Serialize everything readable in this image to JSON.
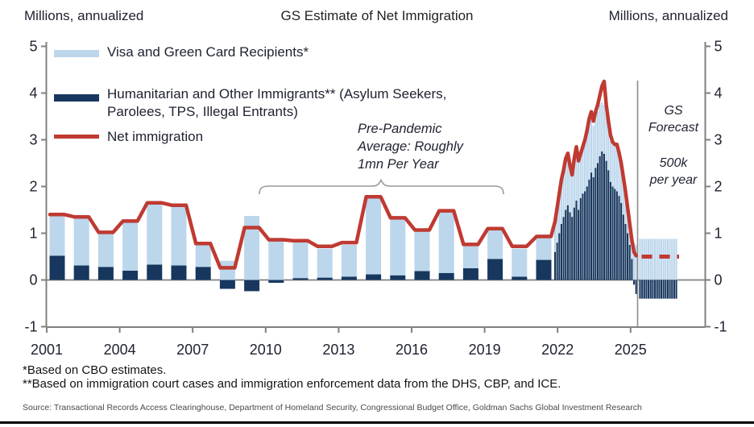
{
  "header": {
    "left_units": "Millions, annualized",
    "title": "GS Estimate of Net Immigration",
    "right_units": "Millions, annualized"
  },
  "legend": [
    {
      "label": "Visa and Green Card Recipients*",
      "swatch": "box",
      "color": "#bcd6ec"
    },
    {
      "label": "Humanitarian and Other Immigrants** (Asylum Seekers,\nParolees, TPS, Illegal Entrants)",
      "swatch": "box",
      "color": "#17375e"
    },
    {
      "label": "Net immigration",
      "swatch": "line",
      "color": "#bf3a32"
    }
  ],
  "annotations": {
    "pre_pandemic": "Pre-Pandemic\nAverage: Roughly\n1mn Per Year",
    "forecast_title": "GS\nForecast",
    "forecast_value": "500k\nper year"
  },
  "footnotes": [
    "*Based on CBO estimates.",
    "**Based on immigration court cases and immigration enforcement data from the DHS, CBP, and ICE."
  ],
  "source": "Source: Transactional Records Access Clearinghouse, Department of Homeland Security, Congressional Budget Office, Goldman Sachs Global Investment Research",
  "chart_data": {
    "type": "bar",
    "subtype": "stacked-bars-with-line",
    "title": "GS Estimate of Net Immigration",
    "ylabel_left": "Millions, annualized",
    "ylabel_right": "Millions, annualized",
    "ylim": [
      -1,
      5
    ],
    "y_ticks": [
      5,
      4,
      3,
      2,
      1,
      0,
      -1
    ],
    "x_ticks": [
      2001,
      2004,
      2007,
      2010,
      2013,
      2016,
      2019,
      2022,
      2025
    ],
    "grid": "zero-line-only",
    "legend_position": "top-left",
    "colors": {
      "visa": "#bcd6ec",
      "humanitarian": "#17375e",
      "net_line": "#bf3a32",
      "axis": "#808080"
    },
    "series_names": [
      "Visa and Green Card Recipients*",
      "Humanitarian and Other Immigrants** (Asylum Seekers, Parolees, TPS, Illegal Entrants)",
      "Net immigration"
    ],
    "annual": {
      "years": [
        2001,
        2002,
        2003,
        2004,
        2005,
        2006,
        2007,
        2008,
        2009,
        2010,
        2011,
        2012,
        2013,
        2014,
        2015,
        2016,
        2017,
        2018,
        2019,
        2020,
        2021
      ],
      "visa_green_card": [
        0.88,
        1.04,
        0.74,
        1.03,
        1.32,
        1.29,
        0.49,
        0.41,
        1.37,
        0.9,
        0.81,
        0.62,
        0.68,
        1.65,
        1.24,
        0.86,
        1.32,
        0.47,
        0.64,
        0.6,
        0.54
      ],
      "humanitarian_other": [
        0.52,
        0.31,
        0.28,
        0.2,
        0.33,
        0.31,
        0.28,
        -0.19,
        -0.24,
        -0.06,
        0.04,
        0.05,
        0.07,
        0.12,
        0.1,
        0.19,
        0.15,
        0.25,
        0.45,
        0.07,
        0.43
      ],
      "net_immigration": [
        1.4,
        1.35,
        1.02,
        1.26,
        1.65,
        1.6,
        0.78,
        0.26,
        1.12,
        0.86,
        0.84,
        0.72,
        0.8,
        1.78,
        1.33,
        1.07,
        1.48,
        0.76,
        1.1,
        0.72,
        0.93
      ]
    },
    "monthly": {
      "start": "2022-01",
      "count": 39,
      "visa_green_card": [
        0.6,
        0.7,
        0.8,
        0.9,
        0.95,
        1.05,
        1.1,
        1.0,
        0.95,
        1.05,
        1.15,
        1.1,
        1.0,
        1.05,
        1.1,
        1.2,
        1.25,
        1.25,
        1.1,
        1.1,
        1.1,
        1.1,
        1.05,
        1.05,
        1.0,
        0.95,
        0.9,
        0.9,
        0.95,
        1.0,
        0.9,
        0.85,
        0.8,
        0.7,
        0.6,
        0.55,
        0.55,
        0.8,
        0.75
      ],
      "humanitarian_other": [
        0.6,
        0.8,
        1.0,
        1.2,
        1.35,
        1.5,
        1.6,
        1.45,
        1.35,
        1.55,
        1.7,
        1.5,
        1.75,
        1.85,
        1.9,
        2.0,
        2.15,
        2.3,
        2.2,
        2.4,
        2.5,
        2.65,
        2.75,
        2.7,
        2.55,
        2.35,
        2.1,
        2.0,
        1.95,
        1.9,
        1.8,
        1.65,
        1.4,
        1.2,
        1.0,
        0.75,
        0.45,
        -0.1,
        -0.3
      ],
      "net_immigration": [
        1.25,
        1.55,
        1.85,
        2.15,
        2.35,
        2.6,
        2.71,
        2.45,
        2.25,
        2.6,
        2.85,
        2.55,
        2.7,
        2.85,
        3.0,
        3.2,
        3.45,
        3.6,
        3.4,
        3.6,
        3.75,
        3.95,
        4.15,
        4.25,
        3.75,
        3.4,
        3.1,
        2.95,
        2.9,
        2.9,
        2.72,
        2.5,
        2.2,
        1.9,
        1.55,
        1.2,
        0.85,
        0.6,
        0.52
      ]
    },
    "forecast": {
      "bar_count": 18,
      "visa_green_card_per_bar": 0.88,
      "humanitarian_other_per_bar": -0.4,
      "net_immigration": 0.5,
      "note": "GS Forecast 500k per year",
      "line_style": "dashed"
    }
  }
}
